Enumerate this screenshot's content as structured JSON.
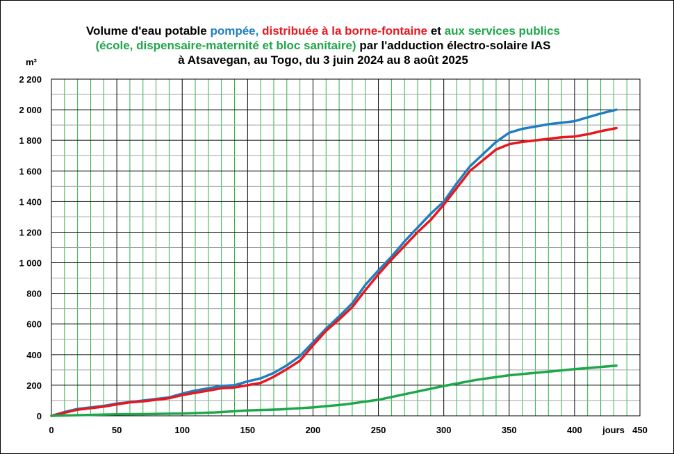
{
  "title": {
    "line1": [
      {
        "text": "Volume d'eau potable ",
        "color": "#000000"
      },
      {
        "text": "pompée,",
        "color": "#1F7EC1"
      },
      {
        "text": " distribuée à la borne-fontaine",
        "color": "#E8171E"
      },
      {
        "text": " et ",
        "color": "#000000"
      },
      {
        "text": "aux services publics",
        "color": "#1EA64B"
      }
    ],
    "line2": [
      {
        "text": "(école, dispensaire-maternité et bloc sanitaire)",
        "color": "#1EA64B"
      },
      {
        "text": " par l'adduction électro-solaire IAS",
        "color": "#000000"
      }
    ],
    "line3": [
      {
        "text": "à Atsavegan, au Togo, du 3 juin 2024 au 8 août 2025",
        "color": "#000000"
      }
    ]
  },
  "chart_data": {
    "type": "line",
    "ylabel": "m³",
    "xlabel": "jours",
    "xlim": [
      0,
      450
    ],
    "ylim": [
      0,
      2200
    ],
    "x_ticks": [
      "0",
      "50",
      "100",
      "150",
      "200",
      "250",
      "300",
      "350",
      "400",
      "450"
    ],
    "y_ticks": [
      "0",
      "200",
      "400",
      "600",
      "800",
      "1 000",
      "1 200",
      "1 400",
      "1 600",
      "1 800",
      "2 000",
      "2 200"
    ],
    "grid": true,
    "series": [
      {
        "name": "pompée",
        "color": "#1F7EC1",
        "x": [
          0,
          10,
          20,
          30,
          40,
          50,
          60,
          70,
          80,
          90,
          100,
          110,
          120,
          130,
          140,
          150,
          160,
          170,
          180,
          190,
          200,
          210,
          220,
          230,
          240,
          250,
          260,
          270,
          280,
          290,
          300,
          310,
          320,
          330,
          340,
          350,
          360,
          370,
          380,
          390,
          400,
          410,
          420,
          432
        ],
        "y": [
          0,
          25,
          45,
          55,
          65,
          80,
          90,
          100,
          110,
          120,
          145,
          165,
          180,
          195,
          200,
          225,
          245,
          280,
          330,
          390,
          480,
          570,
          650,
          735,
          855,
          950,
          1040,
          1140,
          1230,
          1320,
          1400,
          1520,
          1630,
          1710,
          1790,
          1850,
          1875,
          1890,
          1905,
          1915,
          1925,
          1950,
          1975,
          2000
        ]
      },
      {
        "name": "distribuée à la borne-fontaine",
        "color": "#E8171E",
        "x": [
          0,
          10,
          20,
          30,
          40,
          50,
          60,
          70,
          80,
          90,
          100,
          110,
          120,
          130,
          140,
          150,
          160,
          170,
          180,
          190,
          200,
          210,
          220,
          230,
          240,
          250,
          260,
          270,
          280,
          290,
          300,
          310,
          320,
          330,
          340,
          350,
          360,
          370,
          380,
          390,
          400,
          410,
          420,
          432
        ],
        "y": [
          0,
          20,
          40,
          50,
          60,
          75,
          88,
          95,
          105,
          115,
          135,
          150,
          165,
          180,
          185,
          200,
          215,
          255,
          305,
          360,
          460,
          555,
          630,
          710,
          820,
          925,
          1020,
          1110,
          1200,
          1280,
          1380,
          1490,
          1600,
          1670,
          1740,
          1775,
          1790,
          1800,
          1810,
          1820,
          1825,
          1840,
          1860,
          1880
        ]
      },
      {
        "name": "aux services publics",
        "color": "#1EA64B",
        "x": [
          0,
          25,
          50,
          75,
          100,
          125,
          150,
          175,
          200,
          225,
          250,
          275,
          300,
          325,
          350,
          375,
          400,
          432
        ],
        "y": [
          0,
          5,
          10,
          12,
          15,
          22,
          35,
          42,
          55,
          75,
          105,
          150,
          195,
          235,
          265,
          285,
          305,
          328
        ]
      }
    ]
  }
}
